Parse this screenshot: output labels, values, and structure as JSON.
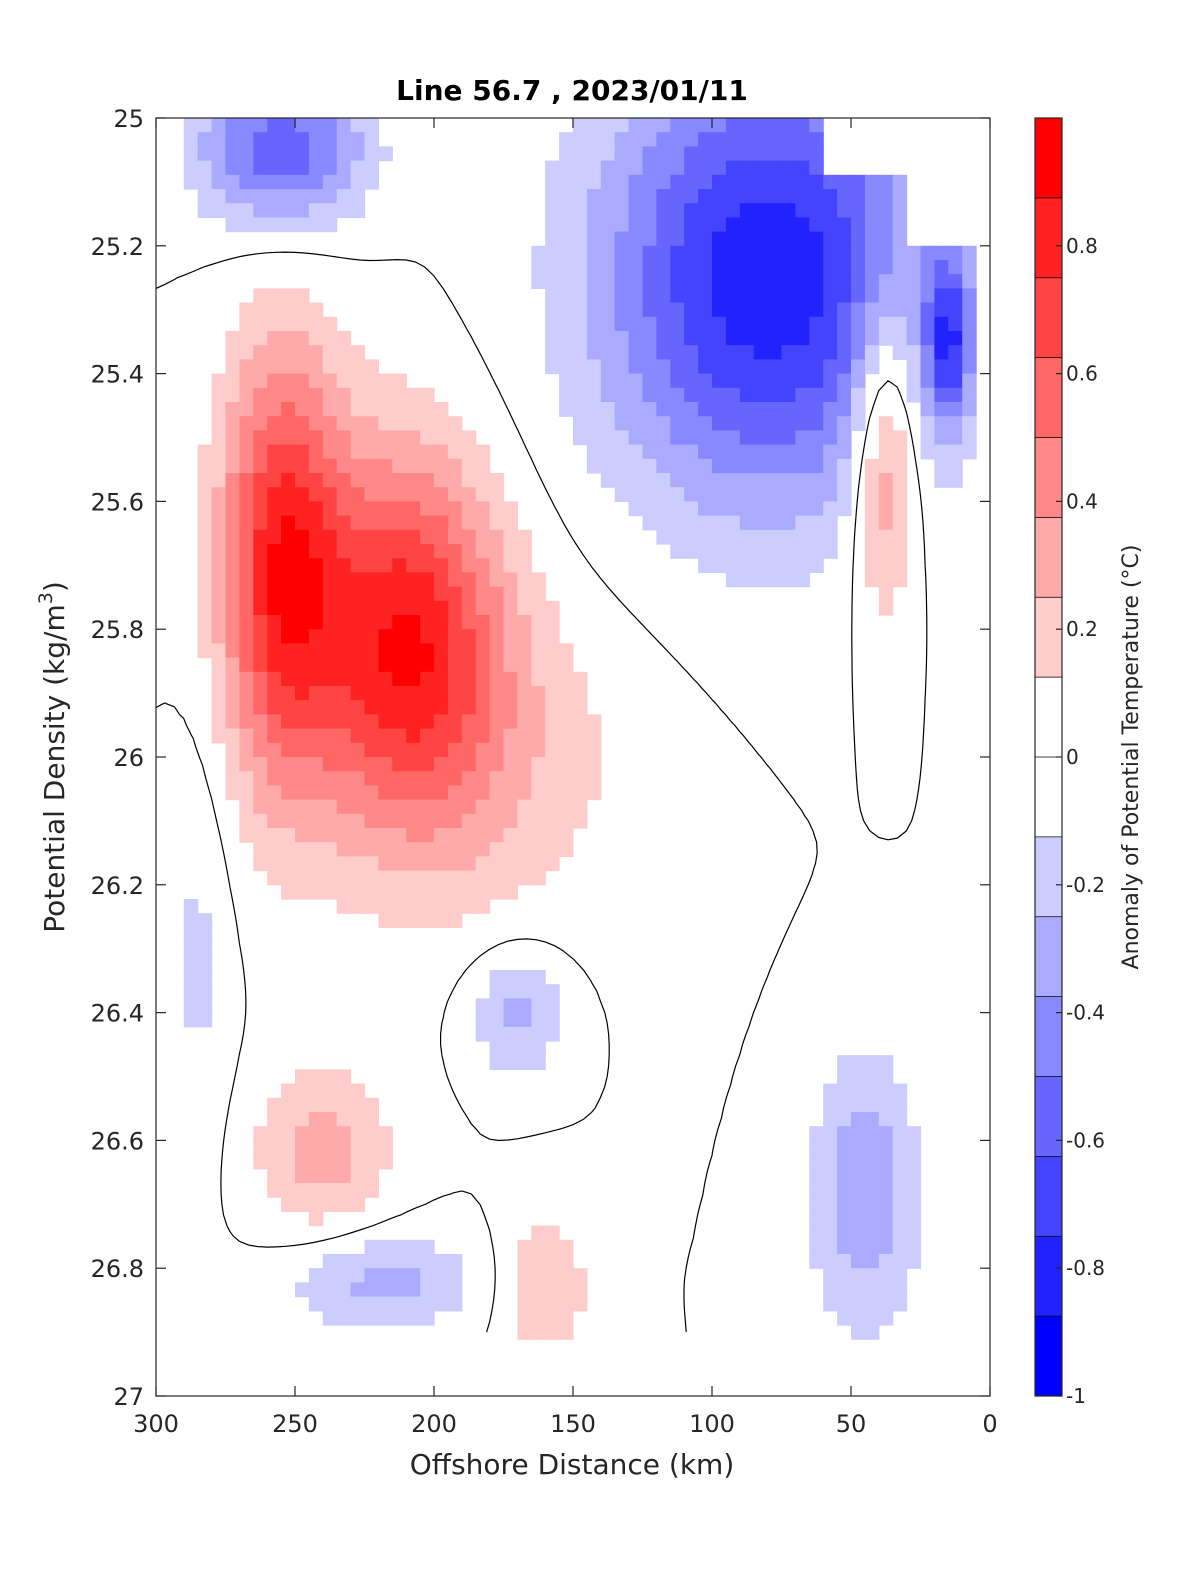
{
  "chart_data": {
    "type": "heatmap",
    "subtype": "filled-contour",
    "title": "Line 56.7 , 2023/01/11",
    "xlabel": "Offshore Distance (km)",
    "ylabel_main": "Potential Density (kg/m",
    "ylabel_sup": "3",
    "ylabel_close": ")",
    "colorbar_label": "Anomaly of Potential Temperature (°C)",
    "xlim": [
      300,
      0
    ],
    "x_reversed": true,
    "ylim": [
      25,
      27
    ],
    "y_reversed": true,
    "x_ticks": [
      "300",
      "250",
      "200",
      "150",
      "100",
      "50",
      "0"
    ],
    "x_tick_values": [
      300,
      250,
      200,
      150,
      100,
      50,
      0
    ],
    "y_ticks": [
      "25",
      "25.2",
      "25.4",
      "25.6",
      "25.8",
      "26",
      "26.2",
      "26.4",
      "26.6",
      "26.8",
      "27"
    ],
    "y_tick_values": [
      25,
      25.2,
      25.4,
      25.6,
      25.8,
      26,
      26.2,
      26.4,
      26.6,
      26.8,
      27
    ],
    "colorbar_range": [
      -1,
      1
    ],
    "colorbar_levels": 16,
    "colorbar_ticks": [
      "-1",
      "-0.8",
      "-0.6",
      "-0.4",
      "-0.2",
      "0",
      "0.2",
      "0.4",
      "0.6",
      "0.8"
    ],
    "colorbar_tick_values": [
      -1,
      -0.8,
      -0.6,
      -0.4,
      -0.2,
      0,
      0.2,
      0.4,
      0.6,
      0.8
    ],
    "colormap": "blue-white-red",
    "colors": {
      "negative": "#0000ff",
      "neutral": "#ffffff",
      "positive": "#ff0000",
      "zero_contour": "#000000"
    },
    "anomaly_features": [
      {
        "name": "warm-core-west",
        "x": 255,
        "y": 25.7,
        "peak": 0.8
      },
      {
        "name": "warm-mid-1",
        "x": 220,
        "y": 25.8,
        "peak": 0.45
      },
      {
        "name": "warm-mid-2",
        "x": 200,
        "y": 25.82,
        "peak": 0.45
      },
      {
        "name": "warm-broad",
        "x": 180,
        "y": 26.0,
        "peak": 0.2
      },
      {
        "name": "warm-nearshore",
        "x": 38,
        "y": 25.52,
        "peak": 0.5
      },
      {
        "name": "warm-deep-1",
        "x": 240,
        "y": 26.62,
        "peak": 0.3
      },
      {
        "name": "warm-deep-2",
        "x": 160,
        "y": 26.83,
        "peak": 0.25
      },
      {
        "name": "cold-surface-main",
        "x": 80,
        "y": 25.25,
        "peak": -0.85
      },
      {
        "name": "cold-surface-west",
        "x": 255,
        "y": 25.05,
        "peak": -0.6
      },
      {
        "name": "cold-nearshore",
        "x": 15,
        "y": 25.35,
        "peak": -0.6
      },
      {
        "name": "cold-deep-nearshore",
        "x": 45,
        "y": 26.68,
        "peak": -0.35
      },
      {
        "name": "cold-deep-mid",
        "x": 170,
        "y": 26.4,
        "peak": -0.3
      },
      {
        "name": "cold-deep-west",
        "x": 220,
        "y": 26.82,
        "peak": -0.3
      },
      {
        "name": "cold-west-flank",
        "x": 285,
        "y": 26.3,
        "peak": -0.15
      }
    ]
  }
}
